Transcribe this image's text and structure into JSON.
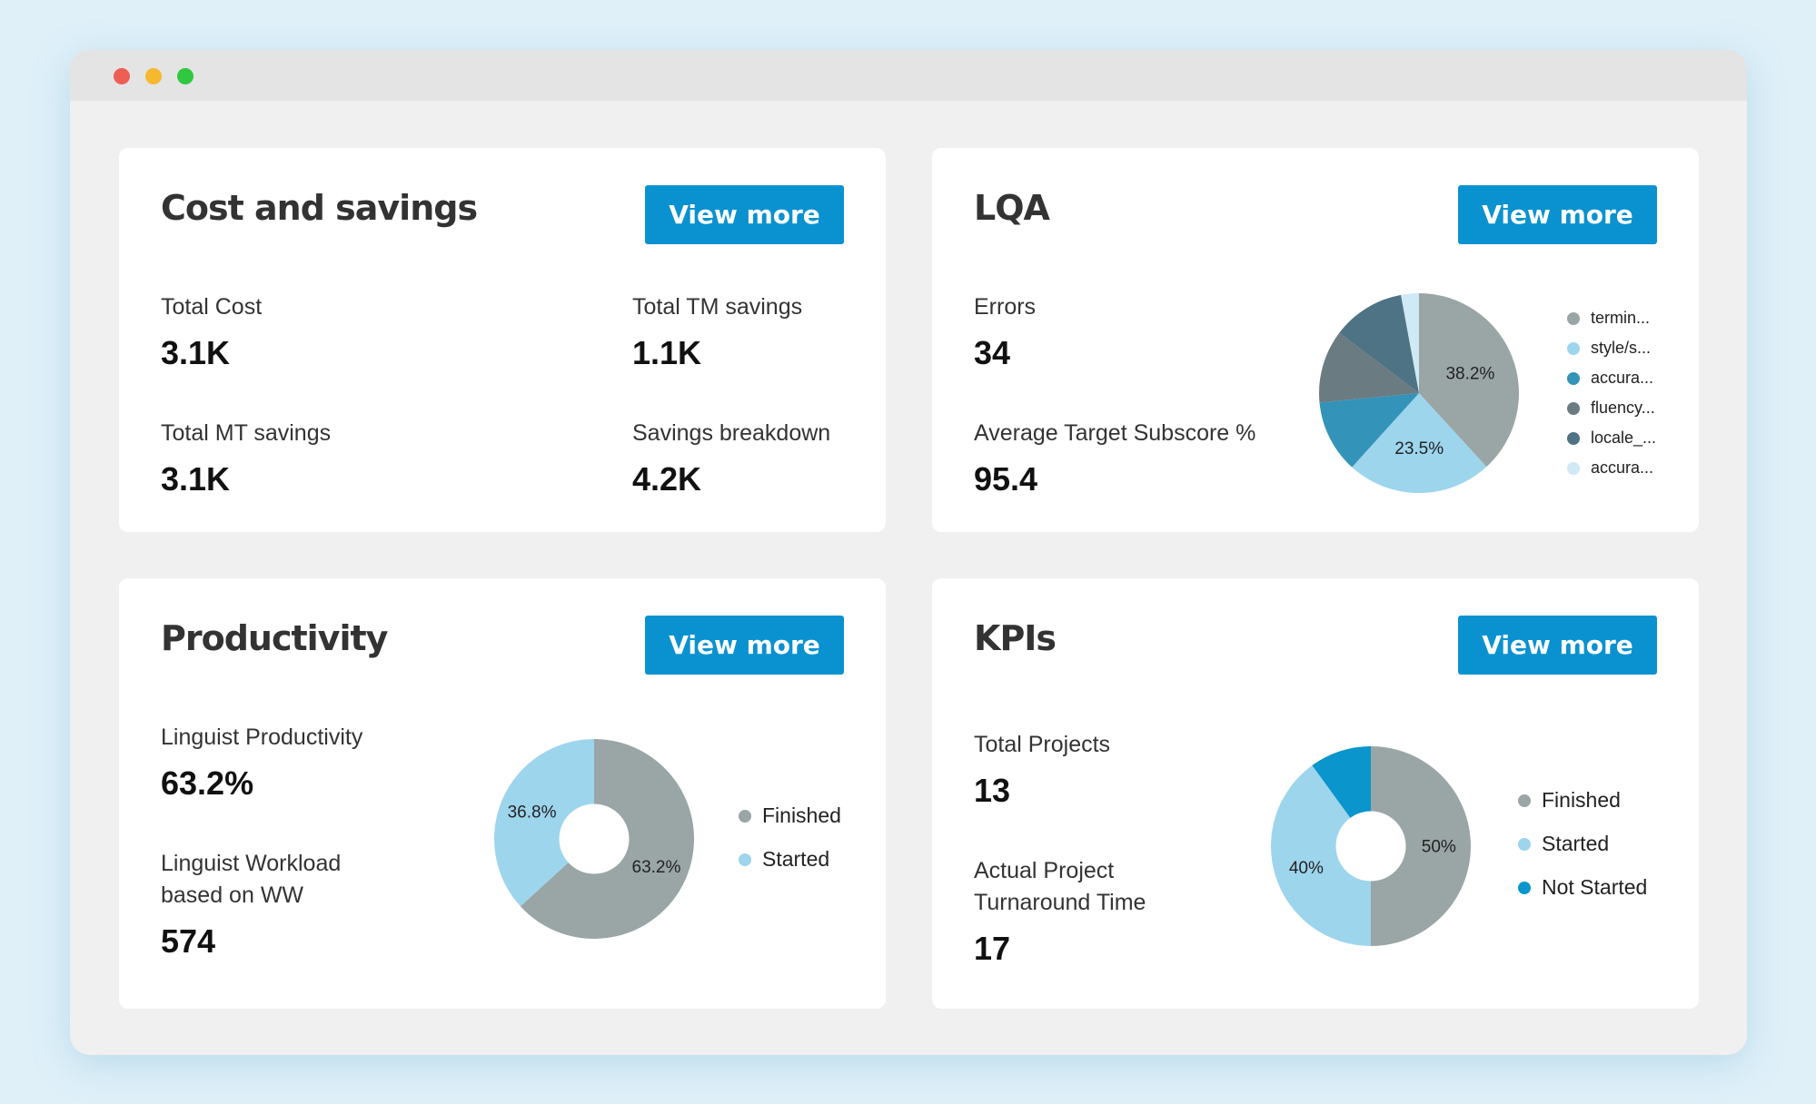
{
  "window": {
    "controls": [
      "close",
      "minimize",
      "maximize"
    ]
  },
  "cost": {
    "title": "Cost and savings",
    "button": "View more",
    "metrics": [
      {
        "label": "Total Cost",
        "value": "3.1K"
      },
      {
        "label": "Total TM savings",
        "value": "1.1K"
      },
      {
        "label": "Total MT savings",
        "value": "3.1K"
      },
      {
        "label": "Savings breakdown",
        "value": "4.2K"
      }
    ]
  },
  "lqa": {
    "title": "LQA",
    "button": "View more",
    "metrics": [
      {
        "label": "Errors",
        "value": "34"
      },
      {
        "label": "Average Target Subscore %",
        "value": "95.4"
      }
    ]
  },
  "productivity": {
    "title": "Productivity",
    "button": "View more",
    "metrics": [
      {
        "label": "Linguist Productivity",
        "value": "63.2%"
      },
      {
        "label": "Linguist Workload based on WW",
        "value": "574"
      }
    ]
  },
  "kpis": {
    "title": "KPIs",
    "button": "View more",
    "metrics": [
      {
        "label": "Total Projects",
        "value": "13"
      },
      {
        "label": "Actual Project Turnaround Time",
        "value": "17"
      }
    ]
  },
  "chart_data": [
    {
      "type": "pie",
      "id": "lqa",
      "categories": [
        "termin...",
        "style/s...",
        "accura...",
        "fluency...",
        "locale_...",
        "accura..."
      ],
      "values": [
        38.2,
        23.5,
        11.8,
        11.8,
        11.8,
        2.9
      ],
      "colors": [
        "#9aa5a6",
        "#9dd5ed",
        "#3393b8",
        "#6b7b82",
        "#4e7384",
        "#cfe9f5"
      ],
      "labels": [
        "38.2%",
        "23.5%",
        "",
        "",
        "",
        ""
      ],
      "hole": 0
    },
    {
      "type": "pie",
      "id": "prod",
      "categories": [
        "Finished",
        "Started"
      ],
      "values": [
        63.2,
        36.8
      ],
      "colors": [
        "#9aa5a6",
        "#9dd5ed"
      ],
      "labels": [
        "63.2%",
        "36.8%"
      ],
      "hole": 0.35
    },
    {
      "type": "pie",
      "id": "kpi",
      "categories": [
        "Finished",
        "Started",
        "Not Started"
      ],
      "values": [
        50,
        40,
        10
      ],
      "colors": [
        "#9aa5a6",
        "#9dd5ed",
        "#0a95cc"
      ],
      "labels": [
        "50%",
        "40%",
        ""
      ],
      "hole": 0.35
    }
  ]
}
